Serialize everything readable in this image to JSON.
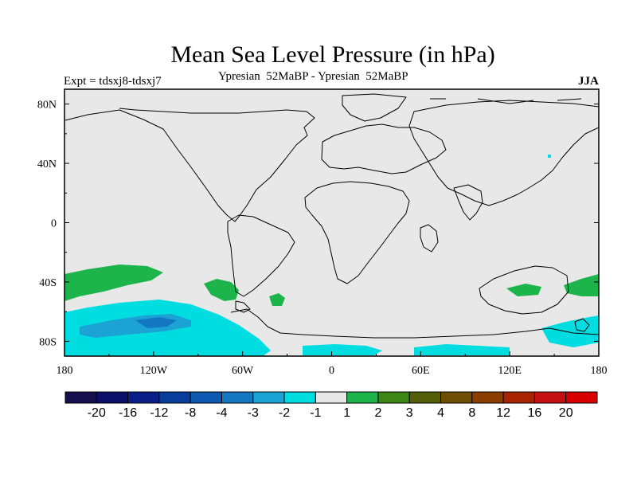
{
  "title": "Mean Sea Level Pressure (in hPa)",
  "subtitle": "Ypresian  52MaBP - Ypresian  52MaBP",
  "experiment": "Expt = tdsxj8-tdsxj7",
  "season": "JJA",
  "map_data": {
    "type": "filled contour map",
    "projection": "cylindrical equidistant",
    "lon_range": [
      -180,
      180
    ],
    "lat_range": [
      -90,
      90
    ],
    "x_ticks": [
      "180",
      "120W",
      "60W",
      "0",
      "60E",
      "120E",
      "180"
    ],
    "y_ticks": [
      "80N",
      "40N",
      "0",
      "40S",
      "80S"
    ],
    "background_color": "#e8e8e8",
    "coastline_color": "#000000"
  },
  "colorbar": {
    "labels": [
      "-20",
      "-16",
      "-12",
      "-8",
      "-4",
      "-3",
      "-2",
      "-1",
      "1",
      "2",
      "3",
      "4",
      "8",
      "12",
      "16",
      "20"
    ],
    "colors": [
      "#16104e",
      "#0b0f68",
      "#0a1e88",
      "#083d9b",
      "#0d58b0",
      "#1377c2",
      "#1aa3d4",
      "#00dde0",
      "#e8e8e8",
      "#1cb44b",
      "#3e8518",
      "#545d07",
      "#6e4e04",
      "#8a3f00",
      "#a82400",
      "#c41010",
      "#d80000"
    ]
  }
}
